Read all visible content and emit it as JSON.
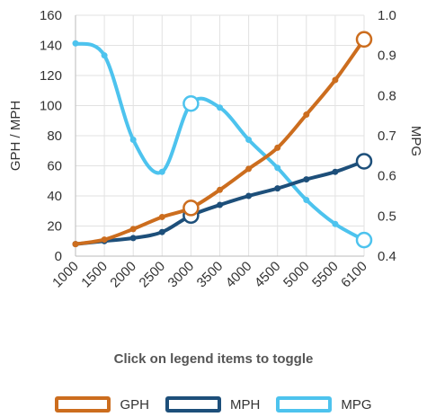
{
  "chart_data": {
    "type": "line",
    "categories": [
      "1000",
      "1500",
      "2000",
      "2500",
      "3000",
      "3500",
      "4000",
      "4500",
      "5000",
      "5500",
      "6100"
    ],
    "left_axis": {
      "label": "GPH / MPH",
      "ylim": [
        0,
        160
      ],
      "ticks": [
        "0",
        "20",
        "40",
        "60",
        "80",
        "100",
        "120",
        "140",
        "160"
      ]
    },
    "right_axis": {
      "label": "MPG",
      "ylim": [
        0.4,
        1.0
      ],
      "ticks": [
        "0.4",
        "0.5",
        "0.6",
        "0.7",
        "0.8",
        "0.9",
        "1.0"
      ]
    },
    "grid": true,
    "legend_position": "bottom",
    "series": [
      {
        "name": "GPH",
        "axis": "left",
        "color": "#cc6d1e",
        "values": [
          8,
          11,
          18,
          26,
          32,
          44,
          58,
          72,
          94,
          117,
          144
        ],
        "highlight": [
          4,
          10
        ]
      },
      {
        "name": "MPH",
        "axis": "left",
        "color": "#1d4f7a",
        "values": [
          8,
          10,
          12,
          16,
          27,
          34,
          40,
          45,
          51,
          56,
          63
        ],
        "highlight": [
          4,
          10
        ]
      },
      {
        "name": "MPG",
        "axis": "right",
        "color": "#4dc3ee",
        "values": [
          0.93,
          0.9,
          0.69,
          0.61,
          0.78,
          0.77,
          0.69,
          0.62,
          0.54,
          0.48,
          0.44
        ],
        "highlight": [
          4,
          10
        ]
      }
    ]
  },
  "hint": "Click on legend items to toggle"
}
